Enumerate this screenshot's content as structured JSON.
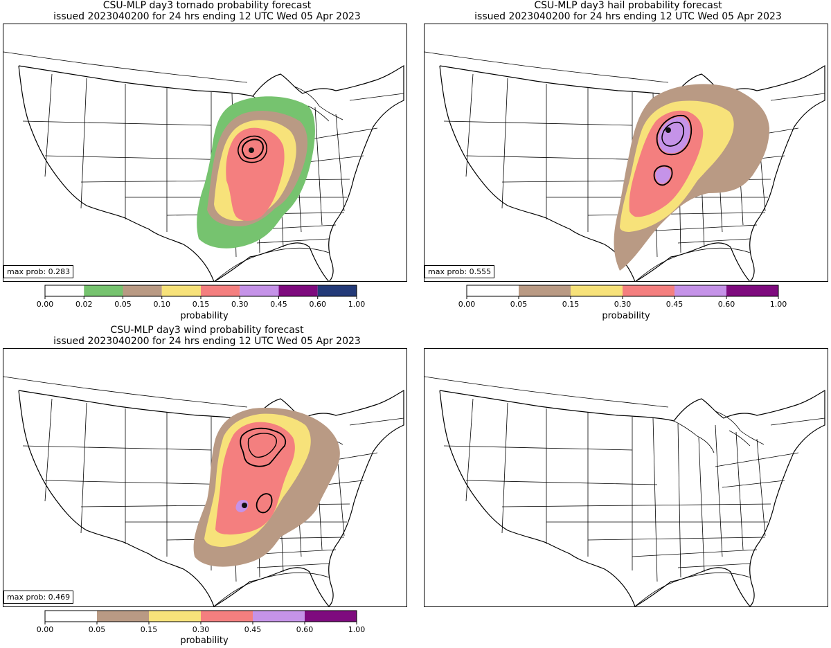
{
  "colors": {
    "tornado_scale": [
      "#ffffff",
      "#76c36f",
      "#b99a84",
      "#f7e27a",
      "#f47f7f",
      "#c593e8",
      "#7e0b7e",
      "#233a78"
    ],
    "six_scale": [
      "#ffffff",
      "#b99a84",
      "#f7e27a",
      "#f47f7f",
      "#c593e8",
      "#7e0b7e"
    ]
  },
  "panels": [
    {
      "id": "tornado",
      "title_line1": "CSU-MLP day3 tornado probability forecast",
      "title_line2": "issued 2023040200 for 24 hrs ending 12 UTC Wed 05 Apr 2023",
      "max_prob": "max prob: 0.283",
      "colorbar_ticks": [
        "0.00",
        "0.02",
        "0.05",
        "0.10",
        "0.15",
        "0.30",
        "0.45",
        "0.60",
        "1.00"
      ],
      "colorbar_label": "probability"
    },
    {
      "id": "hail",
      "title_line1": "CSU-MLP day3 hail probability forecast",
      "title_line2": "issued 2023040200 for 24 hrs ending 12 UTC Wed 05 Apr 2023",
      "max_prob": "max prob: 0.555",
      "colorbar_ticks": [
        "0.00",
        "0.05",
        "0.15",
        "0.30",
        "0.45",
        "0.60",
        "1.00"
      ],
      "colorbar_label": "probability"
    },
    {
      "id": "wind",
      "title_line1": "CSU-MLP day3 wind probability forecast",
      "title_line2": "issued 2023040200 for 24 hrs ending 12 UTC Wed 05 Apr 2023",
      "max_prob": "max prob: 0.469",
      "colorbar_ticks": [
        "0.00",
        "0.05",
        "0.15",
        "0.30",
        "0.45",
        "0.60",
        "1.00"
      ],
      "colorbar_label": "probability"
    },
    {
      "id": "empty"
    }
  ]
}
